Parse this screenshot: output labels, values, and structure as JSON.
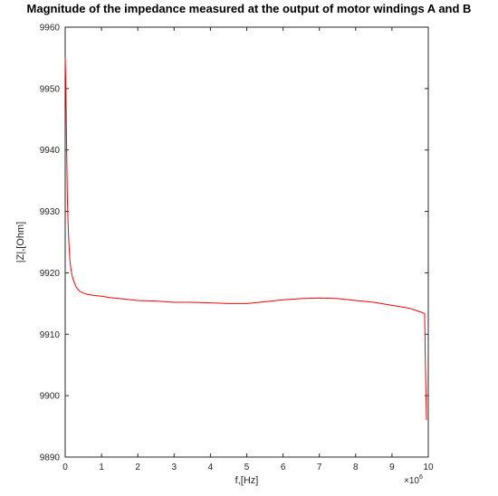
{
  "chart_data": {
    "type": "line",
    "title": "Magnitude of the impedance measured at the output of motor windings A and B",
    "xlabel": "f,[Hz]",
    "ylabel": "|Z|,[Ohm]",
    "x_multiplier_base": "×10",
    "x_multiplier_exp": "6",
    "xlim": [
      0,
      10
    ],
    "ylim": [
      9890,
      9960
    ],
    "x_ticks": [
      0,
      1,
      2,
      3,
      4,
      5,
      6,
      7,
      8,
      9,
      10
    ],
    "y_ticks": [
      9890,
      9900,
      9910,
      9920,
      9930,
      9940,
      9950,
      9960
    ],
    "grid": false,
    "series": [
      {
        "color": "#ff0000",
        "x": [
          0.0,
          0.02,
          0.04,
          0.06,
          0.08,
          0.1,
          0.13,
          0.16,
          0.2,
          0.25,
          0.3,
          0.4,
          0.5,
          0.6,
          0.8,
          1.0,
          1.2,
          1.5,
          2.0,
          2.5,
          3.0,
          3.5,
          4.0,
          4.5,
          5.0,
          5.5,
          6.0,
          6.5,
          7.0,
          7.5,
          8.0,
          8.5,
          9.0,
          9.3,
          9.5,
          9.7,
          9.8,
          9.85,
          9.88,
          9.9,
          9.92,
          9.95
        ],
        "y": [
          9955,
          9950,
          9940,
          9932,
          9928,
          9925,
          9922,
          9920.5,
          9919.3,
          9918.4,
          9917.7,
          9917.0,
          9916.7,
          9916.5,
          9916.3,
          9916.2,
          9916.0,
          9915.8,
          9915.5,
          9915.4,
          9915.2,
          9915.2,
          9915.1,
          9915.0,
          9915.0,
          9915.3,
          9915.6,
          9915.8,
          9915.9,
          9915.8,
          9915.5,
          9915.2,
          9914.7,
          9914.4,
          9914.2,
          9913.8,
          9913.6,
          9913.5,
          9913.4,
          9913.3,
          9905,
          9896
        ]
      }
    ]
  }
}
